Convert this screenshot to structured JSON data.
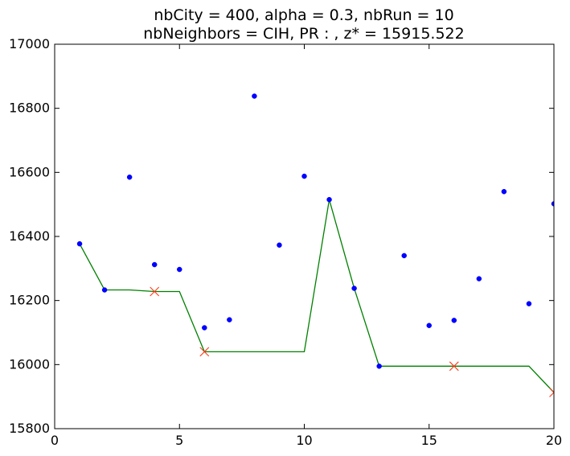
{
  "chart_data": {
    "type": "scatter",
    "title_line1": "nbCity = 400, alpha = 0.3, nbRun = 10",
    "title_line2": "nbNeighbors = CIH, PR : , z* = 15915.522",
    "xlabel": "",
    "ylabel": "",
    "xlim": [
      0,
      20
    ],
    "ylim": [
      15800,
      17000
    ],
    "x_ticks": [
      0,
      5,
      10,
      15,
      20
    ],
    "y_ticks": [
      15800,
      16000,
      16200,
      16400,
      16600,
      16800,
      17000
    ],
    "grid": false,
    "series": [
      {
        "kind": "scatter",
        "color": "#0000ff",
        "x": [
          1,
          2,
          3,
          4,
          5,
          6,
          7,
          8,
          9,
          10,
          11,
          12,
          13,
          14,
          15,
          16,
          17,
          18,
          19,
          20
        ],
        "y": [
          16377,
          16233,
          16585,
          16312,
          16297,
          16115,
          16140,
          16838,
          16373,
          16588,
          16515,
          16238,
          15995,
          16340,
          16122,
          16138,
          16268,
          16540,
          16190,
          16502
        ]
      },
      {
        "kind": "line",
        "color": "#008000",
        "x": [
          1,
          2,
          3,
          4,
          5,
          6,
          7,
          8,
          9,
          10,
          11,
          12,
          13,
          14,
          15,
          16,
          17,
          18,
          19,
          20
        ],
        "y": [
          16377,
          16233,
          16233,
          16228,
          16228,
          16040,
          16040,
          16040,
          16040,
          16040,
          16515,
          16238,
          15995,
          15995,
          15995,
          15995,
          15995,
          15995,
          15995,
          15913
        ]
      },
      {
        "kind": "x-markers",
        "color": "#ff3b1f",
        "x": [
          4,
          6,
          16,
          20
        ],
        "y": [
          16228,
          16040,
          15995,
          15913
        ]
      }
    ]
  }
}
